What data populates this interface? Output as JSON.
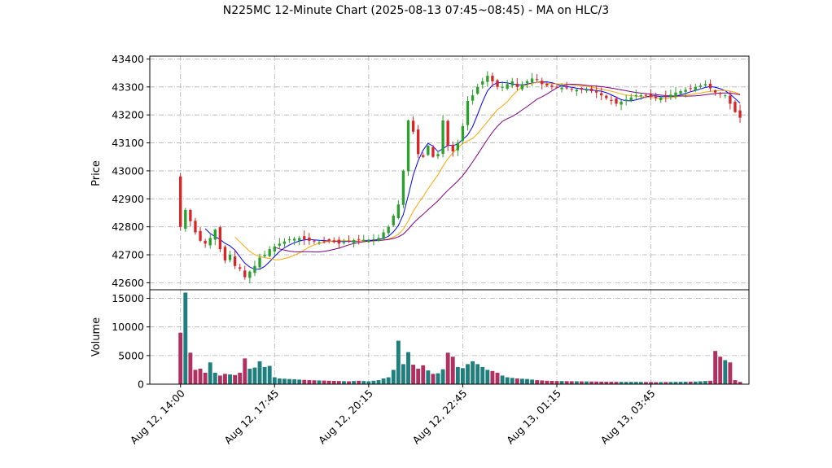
{
  "title": "N225MC 12-Minute Chart (2025-08-13 07:45~08:45) - MA on HLC/3",
  "colors": {
    "up": "#2ca02c",
    "down": "#d62728",
    "vol_up": "#1f7f7f",
    "vol_down": "#b03060",
    "ma_short": "#0000ff",
    "ma_mid": "#ffa500",
    "ma_long": "#800080"
  },
  "chart_data": {
    "type": "candlestick",
    "price_panel": {
      "ylabel": "Price",
      "ylim": [
        42575,
        43410
      ],
      "yticks": [
        42600,
        42700,
        42800,
        42900,
        43000,
        43100,
        43200,
        43300,
        43400
      ],
      "grid": true
    },
    "volume_panel": {
      "ylabel": "Volume",
      "ylim": [
        0,
        16500
      ],
      "yticks": [
        0,
        5000,
        10000,
        15000
      ],
      "grid": true
    },
    "x_ticks": [
      {
        "label": "Aug 12, 14:00",
        "index": 0
      },
      {
        "label": "Aug 12, 17:45",
        "index": 19
      },
      {
        "label": "Aug 12, 20:15",
        "index": 38
      },
      {
        "label": "Aug 12, 22:45",
        "index": 57
      },
      {
        "label": "Aug 13, 01:15",
        "index": 76
      },
      {
        "label": "Aug 13, 03:45",
        "index": 95
      }
    ],
    "x_index_range": [
      -6.2,
      114.8
    ],
    "close_anchors": [
      [
        0,
        42800
      ],
      [
        1,
        42860
      ],
      [
        2,
        42820
      ],
      [
        3,
        42780
      ],
      [
        4,
        42750
      ],
      [
        5,
        42740
      ],
      [
        6,
        42760
      ],
      [
        7,
        42790
      ],
      [
        8,
        42720
      ],
      [
        9,
        42680
      ],
      [
        10,
        42700
      ],
      [
        11,
        42660
      ],
      [
        12,
        42650
      ],
      [
        13,
        42620
      ],
      [
        14,
        42640
      ],
      [
        15,
        42660
      ],
      [
        16,
        42690
      ],
      [
        17,
        42700
      ],
      [
        18,
        42720
      ],
      [
        19,
        42730
      ],
      [
        20,
        42740
      ],
      [
        22,
        42755
      ],
      [
        24,
        42760
      ],
      [
        26,
        42750
      ],
      [
        28,
        42745
      ],
      [
        30,
        42750
      ],
      [
        32,
        42740
      ],
      [
        34,
        42750
      ],
      [
        36,
        42755
      ],
      [
        38,
        42752
      ],
      [
        40,
        42760
      ],
      [
        41,
        42780
      ],
      [
        42,
        42800
      ],
      [
        43,
        42840
      ],
      [
        44,
        42880
      ],
      [
        45,
        43000
      ],
      [
        46,
        43180
      ],
      [
        47,
        43140
      ],
      [
        48,
        43060
      ],
      [
        49,
        43050
      ],
      [
        50,
        43090
      ],
      [
        51,
        43050
      ],
      [
        52,
        43060
      ],
      [
        53,
        43180
      ],
      [
        54,
        43090
      ],
      [
        55,
        43070
      ],
      [
        56,
        43100
      ],
      [
        57,
        43160
      ],
      [
        58,
        43250
      ],
      [
        59,
        43270
      ],
      [
        60,
        43300
      ],
      [
        61,
        43320
      ],
      [
        62,
        43340
      ],
      [
        63,
        43320
      ],
      [
        64,
        43300
      ],
      [
        65,
        43300
      ],
      [
        66,
        43310
      ],
      [
        67,
        43320
      ],
      [
        68,
        43300
      ],
      [
        69,
        43310
      ],
      [
        70,
        43320
      ],
      [
        71,
        43330
      ],
      [
        72,
        43325
      ],
      [
        73,
        43310
      ],
      [
        74,
        43305
      ],
      [
        75,
        43300
      ],
      [
        76,
        43300
      ],
      [
        78,
        43295
      ],
      [
        80,
        43290
      ],
      [
        82,
        43290
      ],
      [
        84,
        43280
      ],
      [
        85,
        43270
      ],
      [
        86,
        43260
      ],
      [
        87,
        43250
      ],
      [
        88,
        43240
      ],
      [
        90,
        43255
      ],
      [
        92,
        43270
      ],
      [
        94,
        43270
      ],
      [
        96,
        43260
      ],
      [
        98,
        43265
      ],
      [
        100,
        43280
      ],
      [
        102,
        43290
      ],
      [
        104,
        43300
      ],
      [
        106,
        43310
      ],
      [
        108,
        43280
      ],
      [
        110,
        43270
      ],
      [
        112,
        43210
      ],
      [
        113,
        43190
      ]
    ],
    "volume_anchors": [
      [
        0,
        9000
      ],
      [
        1,
        16000
      ],
      [
        2,
        5500
      ],
      [
        3,
        2500
      ],
      [
        4,
        2700
      ],
      [
        5,
        2000
      ],
      [
        6,
        3800
      ],
      [
        7,
        2000
      ],
      [
        8,
        1500
      ],
      [
        9,
        1800
      ],
      [
        10,
        1700
      ],
      [
        11,
        1600
      ],
      [
        12,
        2000
      ],
      [
        13,
        4500
      ],
      [
        14,
        2700
      ],
      [
        15,
        2900
      ],
      [
        16,
        4000
      ],
      [
        17,
        3000
      ],
      [
        18,
        3200
      ],
      [
        19,
        1200
      ],
      [
        20,
        1000
      ],
      [
        22,
        900
      ],
      [
        24,
        800
      ],
      [
        26,
        700
      ],
      [
        28,
        650
      ],
      [
        30,
        600
      ],
      [
        32,
        550
      ],
      [
        34,
        500
      ],
      [
        36,
        600
      ],
      [
        38,
        500
      ],
      [
        40,
        700
      ],
      [
        41,
        1000
      ],
      [
        42,
        1200
      ],
      [
        43,
        2500
      ],
      [
        44,
        7600
      ],
      [
        45,
        3500
      ],
      [
        46,
        5600
      ],
      [
        47,
        3400
      ],
      [
        48,
        2700
      ],
      [
        49,
        3300
      ],
      [
        50,
        2400
      ],
      [
        51,
        1800
      ],
      [
        52,
        1900
      ],
      [
        53,
        2600
      ],
      [
        54,
        5500
      ],
      [
        55,
        4800
      ],
      [
        56,
        3000
      ],
      [
        57,
        2800
      ],
      [
        58,
        3500
      ],
      [
        59,
        4000
      ],
      [
        60,
        3500
      ],
      [
        61,
        3000
      ],
      [
        62,
        2500
      ],
      [
        63,
        2300
      ],
      [
        64,
        2000
      ],
      [
        65,
        1500
      ],
      [
        66,
        1200
      ],
      [
        68,
        1000
      ],
      [
        70,
        900
      ],
      [
        72,
        700
      ],
      [
        74,
        600
      ],
      [
        76,
        550
      ],
      [
        80,
        500
      ],
      [
        84,
        450
      ],
      [
        88,
        400
      ],
      [
        92,
        400
      ],
      [
        96,
        350
      ],
      [
        100,
        400
      ],
      [
        104,
        450
      ],
      [
        107,
        600
      ],
      [
        108,
        5800
      ],
      [
        109,
        4800
      ],
      [
        110,
        4200
      ],
      [
        111,
        3800
      ],
      [
        112,
        700
      ],
      [
        113,
        400
      ]
    ],
    "moving_averages": [
      {
        "period": 5,
        "start": 5,
        "color_key": "ma_short"
      },
      {
        "period": 12,
        "start": 11,
        "color_key": "ma_mid"
      },
      {
        "period": 20,
        "start": 19,
        "color_key": "ma_long"
      }
    ],
    "bar_count": 114
  }
}
